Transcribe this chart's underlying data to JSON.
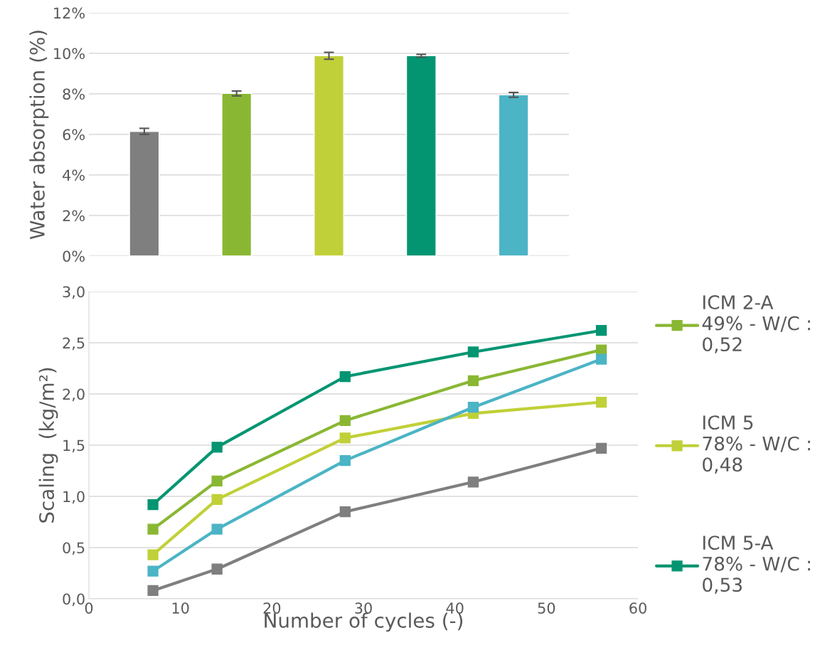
{
  "chart_data": [
    {
      "type": "bar",
      "ylabel": "Water absorption (%)",
      "categories": [
        null,
        null,
        null,
        null,
        null
      ],
      "values": [
        6.15,
        8.02,
        9.88,
        9.88,
        7.95
      ],
      "errors": [
        0.15,
        0.12,
        0.17,
        0.07,
        0.12
      ],
      "colors": [
        "#7f7f7f",
        "#8ab733",
        "#c0d038",
        "#039571",
        "#4bb4c5"
      ],
      "ylim": [
        0,
        12
      ],
      "yticks": [
        {
          "value": 0,
          "label": "0%"
        },
        {
          "value": 2,
          "label": "2%"
        },
        {
          "value": 4,
          "label": "4%"
        },
        {
          "value": 6,
          "label": "6%"
        },
        {
          "value": 8,
          "label": "8%"
        },
        {
          "value": 10,
          "label": "10%"
        },
        {
          "value": 12,
          "label": "12%"
        }
      ],
      "grid": "y",
      "tick_labels": "y"
    },
    {
      "type": "line",
      "xlabel": "Number of cycles (-)",
      "ylabel": "Scaling  (kg/m²)",
      "x": [
        7,
        14,
        28,
        42,
        56
      ],
      "series": [
        {
          "color": "#7f7f7f",
          "values": [
            0.08,
            0.29,
            0.85,
            1.14,
            1.47
          ]
        },
        {
          "name": "ICM 2-A\n49% - W/C :\n0,52",
          "color": "#8ab733",
          "values": [
            0.68,
            1.15,
            1.74,
            2.13,
            2.43
          ]
        },
        {
          "name": "ICM 5\n78% - W/C :\n0,48",
          "color": "#c0d038",
          "values": [
            0.43,
            0.97,
            1.57,
            1.81,
            1.92
          ]
        },
        {
          "name": "ICM 5-A\n78% - W/C :\n0,53",
          "color": "#039571",
          "values": [
            0.92,
            1.48,
            2.17,
            2.41,
            2.62
          ]
        },
        {
          "color": "#4bb4c5",
          "values": [
            0.27,
            0.68,
            1.35,
            1.87,
            2.34
          ]
        }
      ],
      "xlim": [
        0,
        60
      ],
      "xticks": [
        0,
        10,
        20,
        30,
        40,
        50,
        60
      ],
      "ylim": [
        0,
        3
      ],
      "yticks": [
        {
          "value": 0,
          "label": "0,0"
        },
        {
          "value": 0.5,
          "label": "0,5"
        },
        {
          "value": 1,
          "label": "1,0"
        },
        {
          "value": 1.5,
          "label": "1,5"
        },
        {
          "value": 2,
          "label": "2,0"
        },
        {
          "value": 2.5,
          "label": "2,5"
        },
        {
          "value": 3,
          "label": "3,0"
        }
      ],
      "grid": "y",
      "legend": "right",
      "marker": "square",
      "line_style": "solid"
    }
  ]
}
